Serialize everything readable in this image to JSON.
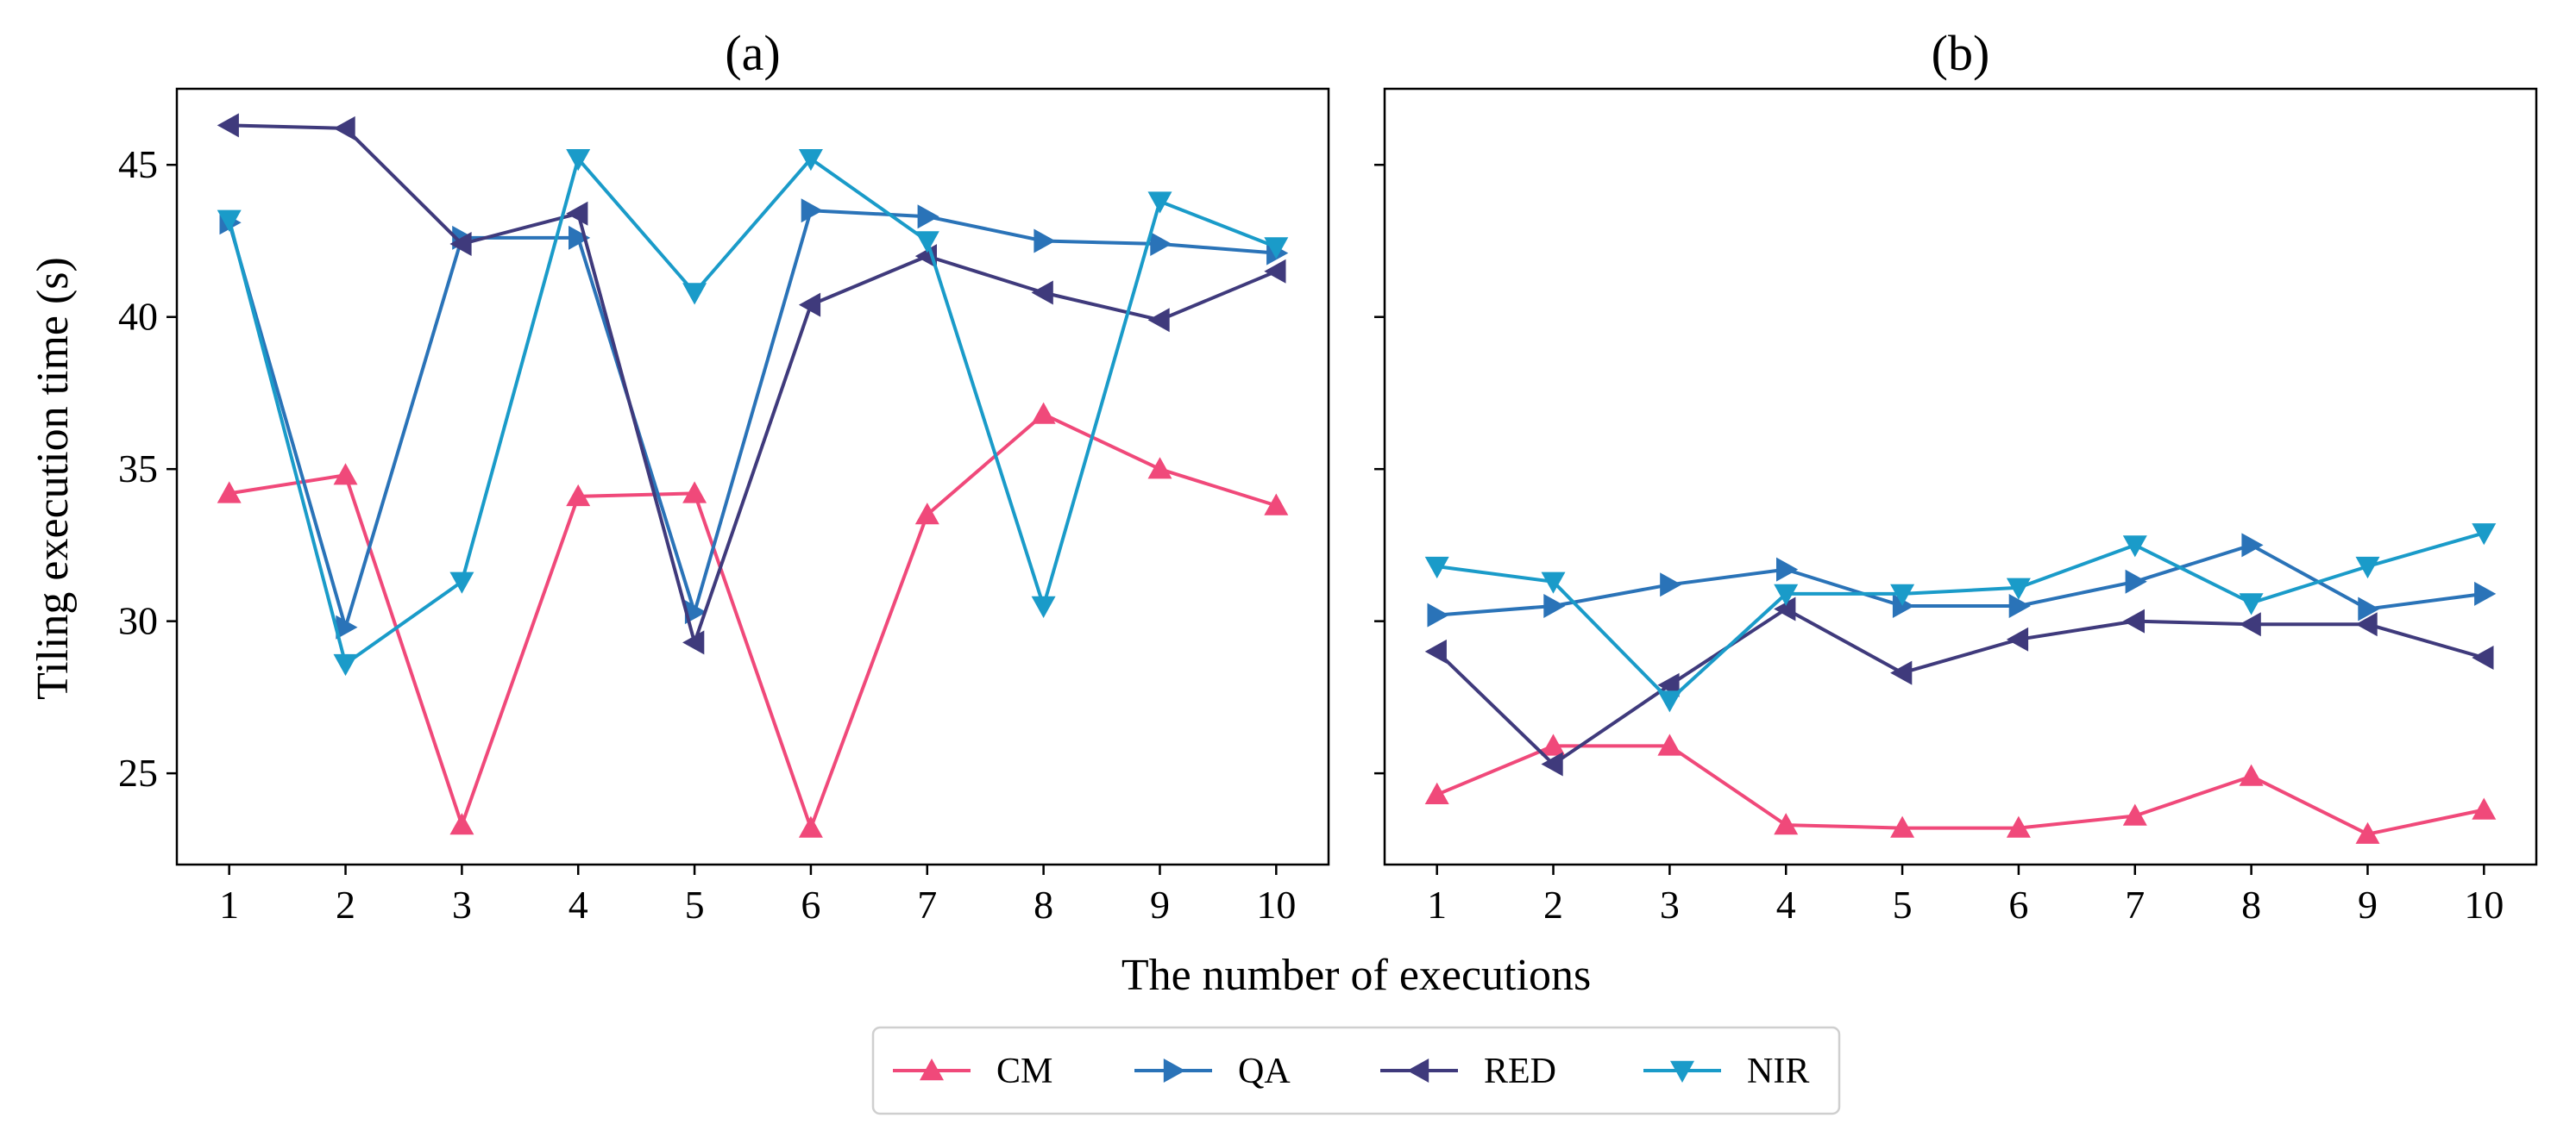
{
  "chart_data": {
    "type": "line",
    "xlabel": "The number of executions",
    "ylabel": "Tiling execution time (s)",
    "ylim": [
      22,
      47.5
    ],
    "xlim": [
      0.55,
      10.45
    ],
    "x": [
      1,
      2,
      3,
      4,
      5,
      6,
      7,
      8,
      9,
      10
    ],
    "yticks": [
      25,
      30,
      35,
      40,
      45
    ],
    "shared_y": true,
    "legend_position": "bottom-center",
    "series_styles": [
      {
        "name": "CM",
        "color": "#f0497a",
        "marker": "triangle-up"
      },
      {
        "name": "QA",
        "color": "#2a73b8",
        "marker": "triangle-right"
      },
      {
        "name": "RED",
        "color": "#3f3a7c",
        "marker": "triangle-left"
      },
      {
        "name": "NIR",
        "color": "#1a9bc9",
        "marker": "triangle-down"
      }
    ],
    "panels": [
      {
        "title": "(a)",
        "series": [
          {
            "name": "CM",
            "values": [
              34.2,
              34.8,
              23.3,
              34.1,
              34.2,
              23.2,
              33.5,
              36.8,
              35.0,
              33.8
            ]
          },
          {
            "name": "QA",
            "values": [
              43.1,
              29.8,
              42.6,
              42.6,
              30.3,
              43.5,
              43.3,
              42.5,
              42.4,
              42.1
            ]
          },
          {
            "name": "RED",
            "values": [
              46.3,
              46.2,
              42.4,
              43.4,
              29.3,
              40.4,
              42.0,
              40.8,
              39.9,
              41.5
            ]
          },
          {
            "name": "NIR",
            "values": [
              43.2,
              28.6,
              31.3,
              45.2,
              40.8,
              45.2,
              42.5,
              30.5,
              43.8,
              42.3
            ]
          }
        ]
      },
      {
        "title": "(b)",
        "series": [
          {
            "name": "CM",
            "values": [
              24.3,
              25.9,
              25.9,
              23.3,
              23.2,
              23.2,
              23.6,
              24.9,
              23.0,
              23.8
            ]
          },
          {
            "name": "QA",
            "values": [
              30.2,
              30.5,
              31.2,
              31.7,
              30.5,
              30.5,
              31.3,
              32.5,
              30.4,
              30.9
            ]
          },
          {
            "name": "RED",
            "values": [
              29.0,
              25.3,
              27.9,
              30.4,
              28.3,
              29.4,
              30.0,
              29.9,
              29.9,
              28.8
            ]
          },
          {
            "name": "NIR",
            "values": [
              31.8,
              31.3,
              27.4,
              30.9,
              30.9,
              31.1,
              32.5,
              30.6,
              31.8,
              32.9
            ]
          }
        ]
      }
    ]
  }
}
